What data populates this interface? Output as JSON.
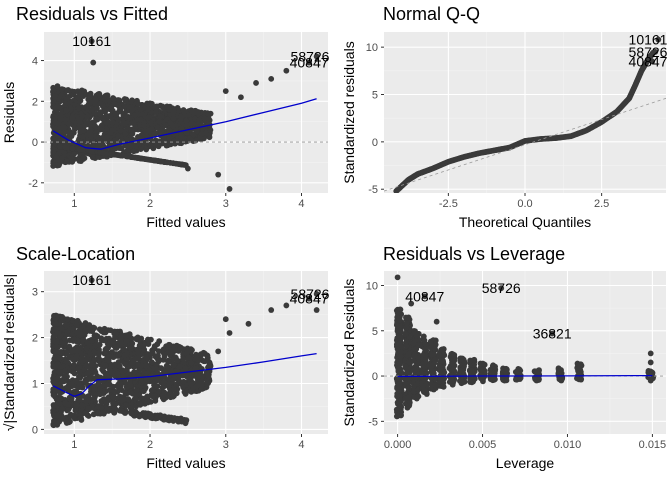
{
  "colors": {
    "panel_bg": "#ebebeb",
    "grid_major": "#ffffff",
    "grid_minor": "#f3f3f3",
    "points": "#3a3a3a",
    "smooth_line": "#0000cc",
    "reference_line": "#9a9a9a"
  },
  "chart_data": [
    {
      "type": "scatter",
      "title": "Residuals vs Fitted",
      "xlabel": "Fitted values",
      "ylabel": "Residuals",
      "xlim": [
        0.6,
        4.35
      ],
      "ylim": [
        -2.5,
        5.4
      ],
      "xticks": [
        1,
        2,
        3,
        4
      ],
      "yticks": [
        -2,
        0,
        2,
        4
      ],
      "xtick_labels": [
        "1",
        "2",
        "3",
        "4"
      ],
      "ytick_labels": [
        "-2",
        "0",
        "2",
        "4"
      ],
      "grid": true,
      "reference_line": {
        "type": "horizontal",
        "y": 0,
        "style": "dashed"
      },
      "smooth_line": [
        [
          0.72,
          0.55
        ],
        [
          0.92,
          0.1
        ],
        [
          1.15,
          -0.28
        ],
        [
          1.35,
          -0.35
        ],
        [
          1.6,
          -0.1
        ],
        [
          2.0,
          0.2
        ],
        [
          2.5,
          0.6
        ],
        [
          3.0,
          1.0
        ],
        [
          3.5,
          1.45
        ],
        [
          4.0,
          1.9
        ],
        [
          4.2,
          2.12
        ]
      ],
      "bulk_cloud": {
        "x_range": [
          0.72,
          2.8
        ],
        "y_range": [
          -1.2,
          2.8
        ]
      },
      "points": [
        {
          "x": 1.23,
          "y": 4.95,
          "label": "10161"
        },
        {
          "x": 4.2,
          "y": 4.2,
          "label": "58726"
        },
        {
          "x": 4.1,
          "y": 3.9,
          "label": "40847"
        },
        {
          "x": 1.25,
          "y": 3.9
        },
        {
          "x": 3.0,
          "y": 2.5
        },
        {
          "x": 3.2,
          "y": 2.2
        },
        {
          "x": 3.4,
          "y": 2.9
        },
        {
          "x": 3.6,
          "y": 3.1
        },
        {
          "x": 3.8,
          "y": 3.5
        },
        {
          "x": 2.9,
          "y": -1.6
        },
        {
          "x": 3.05,
          "y": -2.3
        },
        {
          "x": 2.5,
          "y": -1.3
        }
      ]
    },
    {
      "type": "scatter",
      "title": "Normal Q-Q",
      "xlabel": "Theoretical Quantiles",
      "ylabel": "Standardized residuals",
      "xlim": [
        -4.6,
        4.6
      ],
      "ylim": [
        -5.4,
        11.6
      ],
      "xticks": [
        -2.5,
        0.0,
        2.5
      ],
      "yticks": [
        -5,
        0,
        5,
        10
      ],
      "xtick_labels": [
        "-2.5",
        "0.0",
        "2.5"
      ],
      "ytick_labels": [
        "-5",
        "0",
        "5",
        "10"
      ],
      "grid": true,
      "reference_line": {
        "type": "diagonal",
        "from": [
          -4.6,
          -5.2
        ],
        "to": [
          4.6,
          4.6
        ],
        "style": "dashed"
      },
      "qq_curve": [
        [
          -4.2,
          -5.2
        ],
        [
          -3.8,
          -4.0
        ],
        [
          -3.5,
          -3.4
        ],
        [
          -3.0,
          -2.8
        ],
        [
          -2.5,
          -2.1
        ],
        [
          -2.0,
          -1.6
        ],
        [
          -1.5,
          -1.2
        ],
        [
          -1.0,
          -0.9
        ],
        [
          -0.5,
          -0.6
        ],
        [
          0.0,
          0.1
        ],
        [
          0.5,
          0.3
        ],
        [
          1.0,
          0.4
        ],
        [
          1.5,
          0.6
        ],
        [
          2.0,
          1.2
        ],
        [
          2.5,
          2.1
        ],
        [
          3.0,
          3.2
        ],
        [
          3.4,
          4.6
        ],
        [
          3.6,
          6.0
        ],
        [
          3.8,
          7.5
        ],
        [
          4.0,
          8.6
        ],
        [
          4.2,
          9.5
        ]
      ],
      "points": [
        {
          "x": 4.35,
          "y": 10.8,
          "label": "10161"
        },
        {
          "x": 4.25,
          "y": 9.5,
          "label": "58726"
        },
        {
          "x": 4.15,
          "y": 8.5,
          "label": "40847"
        }
      ]
    },
    {
      "type": "scatter",
      "title": "Scale-Location",
      "xlabel": "Fitted values",
      "ylabel": "√|Standardized residuals|",
      "xlim": [
        0.6,
        4.35
      ],
      "ylim": [
        -0.1,
        3.45
      ],
      "xticks": [
        1,
        2,
        3,
        4
      ],
      "yticks": [
        0,
        1,
        2,
        3
      ],
      "xtick_labels": [
        "1",
        "2",
        "3",
        "4"
      ],
      "ytick_labels": [
        "0",
        "1",
        "2",
        "3"
      ],
      "grid": true,
      "smooth_line": [
        [
          0.72,
          0.95
        ],
        [
          0.9,
          0.8
        ],
        [
          1.0,
          0.72
        ],
        [
          1.1,
          0.78
        ],
        [
          1.2,
          0.95
        ],
        [
          1.3,
          1.08
        ],
        [
          1.6,
          1.1
        ],
        [
          2.0,
          1.15
        ],
        [
          2.5,
          1.25
        ],
        [
          3.0,
          1.35
        ],
        [
          3.5,
          1.47
        ],
        [
          4.0,
          1.6
        ],
        [
          4.2,
          1.65
        ]
      ],
      "bulk_cloud": {
        "x_range": [
          0.72,
          2.8
        ],
        "y_range": [
          0.05,
          2.5
        ]
      },
      "points": [
        {
          "x": 1.23,
          "y": 3.25,
          "label": "10161"
        },
        {
          "x": 4.2,
          "y": 2.95,
          "label": "58726"
        },
        {
          "x": 4.1,
          "y": 2.85,
          "label": "40847"
        },
        {
          "x": 3.0,
          "y": 2.4
        },
        {
          "x": 3.3,
          "y": 2.3
        },
        {
          "x": 3.6,
          "y": 2.6
        },
        {
          "x": 3.8,
          "y": 2.7
        },
        {
          "x": 4.2,
          "y": 2.6
        },
        {
          "x": 3.05,
          "y": 2.1
        },
        {
          "x": 2.9,
          "y": 1.7
        }
      ]
    },
    {
      "type": "scatter",
      "title": "Residuals vs Leverage",
      "xlabel": "Leverage",
      "ylabel": "Standardized Residuals",
      "xlim": [
        -0.0008,
        0.0158
      ],
      "ylim": [
        -6.4,
        11.6
      ],
      "xticks": [
        0.0,
        0.005,
        0.01,
        0.015
      ],
      "yticks": [
        -5,
        0,
        5,
        10
      ],
      "xtick_labels": [
        "0.000",
        "0.005",
        "0.010",
        "0.015"
      ],
      "ytick_labels": [
        "-5",
        "0",
        "5",
        "10"
      ],
      "grid": true,
      "reference_line": {
        "type": "horizontal",
        "y": 0,
        "style": "dashed"
      },
      "smooth_line": [
        [
          0.0,
          -0.05
        ],
        [
          0.005,
          0.0
        ],
        [
          0.01,
          0.02
        ],
        [
          0.015,
          0.05
        ]
      ],
      "columns": [
        {
          "x": 0.0001,
          "y_range": [
            -4.5,
            7.5
          ]
        },
        {
          "x": 0.0006,
          "y_range": [
            -3.5,
            6.5
          ]
        },
        {
          "x": 0.0011,
          "y_range": [
            -2.5,
            5.0
          ]
        },
        {
          "x": 0.0016,
          "y_range": [
            -2.0,
            4.5
          ]
        },
        {
          "x": 0.0021,
          "y_range": [
            -1.5,
            4.0
          ]
        },
        {
          "x": 0.0026,
          "y_range": [
            -1.2,
            3.0
          ]
        },
        {
          "x": 0.0032,
          "y_range": [
            -1.0,
            2.5
          ]
        },
        {
          "x": 0.0038,
          "y_range": [
            -0.8,
            2.0
          ]
        },
        {
          "x": 0.0044,
          "y_range": [
            -0.7,
            1.8
          ]
        },
        {
          "x": 0.005,
          "y_range": [
            -0.6,
            1.5
          ]
        },
        {
          "x": 0.0056,
          "y_range": [
            -0.5,
            1.2
          ]
        },
        {
          "x": 0.0063,
          "y_range": [
            -0.5,
            1.0
          ]
        },
        {
          "x": 0.0071,
          "y_range": [
            -0.5,
            0.8
          ]
        },
        {
          "x": 0.0082,
          "y_range": [
            -0.5,
            0.7
          ]
        },
        {
          "x": 0.0096,
          "y_range": [
            -0.5,
            1.0
          ]
        },
        {
          "x": 0.0107,
          "y_range": [
            -0.4,
            1.4
          ]
        },
        {
          "x": 0.0149,
          "y_range": [
            -0.3,
            0.6
          ]
        }
      ],
      "points": [
        {
          "x": 0.0016,
          "y": 8.8,
          "label": "40847"
        },
        {
          "x": 0.0061,
          "y": 9.7,
          "label": "58726"
        },
        {
          "x": 0.0091,
          "y": 4.7,
          "label": "36821"
        },
        {
          "x": 0.0,
          "y": 10.9
        },
        {
          "x": 0.0008,
          "y": 8.0
        },
        {
          "x": 0.0023,
          "y": 6.0
        },
        {
          "x": 0.0149,
          "y": 2.5
        },
        {
          "x": 0.0149,
          "y": 1.5
        },
        {
          "x": 0.0149,
          "y": -0.5
        }
      ]
    }
  ]
}
